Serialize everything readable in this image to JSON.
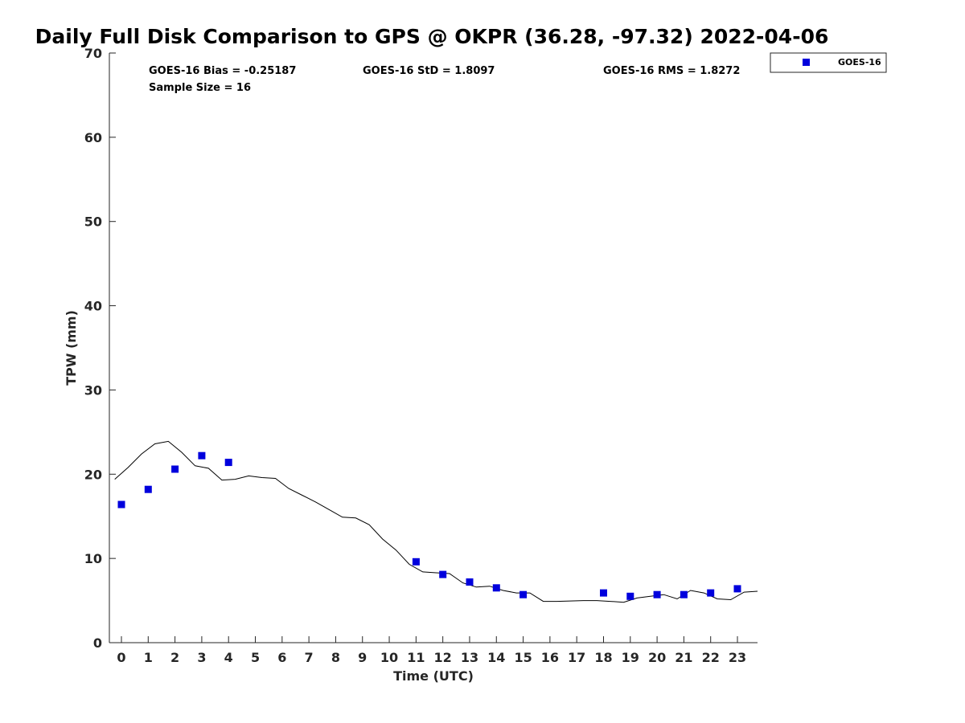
{
  "chart_data": {
    "type": "scatter",
    "title": "Daily Full Disk Comparison to GPS @ OKPR (36.28, -97.32) 2022-04-06",
    "xlabel": "Time (UTC)",
    "ylabel": "TPW (mm)",
    "ylim": [
      0,
      70
    ],
    "yticks": [
      0,
      10,
      20,
      30,
      40,
      50,
      60,
      70
    ],
    "xlim": [
      -0.45,
      23.75
    ],
    "xticks": [
      0,
      1,
      2,
      3,
      4,
      5,
      6,
      7,
      8,
      9,
      10,
      11,
      12,
      13,
      14,
      15,
      16,
      17,
      18,
      19,
      20,
      21,
      22,
      23
    ],
    "grid": false,
    "legend_position": "top-right (outside plot area)",
    "stats": {
      "bias": "GOES-16 Bias = -0.25187",
      "std": "GOES-16 StD = 1.8097",
      "rms": "GOES-16 RMS = 1.8272",
      "sample_size": "Sample Size = 16"
    },
    "series": [
      {
        "name": "GOES-16",
        "kind": "markers",
        "marker": "square",
        "color": "#0000dd",
        "x": [
          0,
          1,
          2,
          3,
          4,
          11,
          12,
          13,
          14,
          15,
          18,
          19,
          20,
          21,
          22,
          23
        ],
        "y": [
          16.4,
          18.2,
          20.6,
          22.2,
          21.4,
          9.6,
          8.1,
          7.2,
          6.5,
          5.7,
          5.9,
          5.5,
          5.7,
          5.7,
          5.9,
          6.4
        ]
      },
      {
        "kind": "line",
        "color": "#000000",
        "x": [
          -0.25,
          0.25,
          0.75,
          1.25,
          1.75,
          2.25,
          2.75,
          3.25,
          3.75,
          4.25,
          4.75,
          5.25,
          5.75,
          6.25,
          6.75,
          7.25,
          7.75,
          8.25,
          8.75,
          9.25,
          9.75,
          10.25,
          10.75,
          11.25,
          11.75,
          12.25,
          12.75,
          13.25,
          13.75,
          14.25,
          14.75,
          15.25,
          15.75,
          16.25,
          16.75,
          17.25,
          17.75,
          18.25,
          18.75,
          19.25,
          19.75,
          20.25,
          20.75,
          21.25,
          21.75,
          22.25,
          22.75,
          23.25,
          23.75
        ],
        "y": [
          19.4,
          20.8,
          22.4,
          23.6,
          23.9,
          22.6,
          21.0,
          20.7,
          19.3,
          19.4,
          19.8,
          19.6,
          19.5,
          18.3,
          17.5,
          16.7,
          15.8,
          14.9,
          14.8,
          14.0,
          12.3,
          11.0,
          9.3,
          8.4,
          8.3,
          8.2,
          7.1,
          6.6,
          6.7,
          6.2,
          5.9,
          5.9,
          4.9,
          4.9,
          4.95,
          5.0,
          5.0,
          4.9,
          4.8,
          5.3,
          5.5,
          5.7,
          5.2,
          6.2,
          5.9,
          5.2,
          5.1,
          6.0,
          6.1
        ]
      }
    ]
  }
}
